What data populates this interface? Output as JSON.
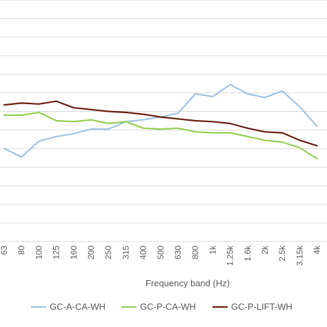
{
  "chart_data": {
    "type": "line",
    "xlabel": "Frequency band (Hz)",
    "ylabel": "",
    "title": "",
    "grid": true,
    "legend_position": "bottom",
    "ylim": [
      0,
      13
    ],
    "categories": [
      "63",
      "80",
      "100",
      "125",
      "160",
      "200",
      "250",
      "315",
      "400",
      "500",
      "630",
      "800",
      "1k",
      "1.25k",
      "1.6k",
      "2k",
      "2.5k",
      "3.15k",
      "4k"
    ],
    "series": [
      {
        "name": "GC-A-CA-WH",
        "color": "#9dc3e6",
        "values": [
          5.0,
          4.55,
          5.4,
          5.65,
          5.8,
          6.05,
          6.05,
          6.45,
          6.55,
          6.7,
          6.9,
          7.95,
          7.8,
          8.45,
          7.95,
          7.75,
          8.1,
          7.25,
          6.2
        ]
      },
      {
        "name": "GC-P-CA-WH",
        "color": "#92d050",
        "values": [
          6.8,
          6.8,
          6.95,
          6.5,
          6.45,
          6.55,
          6.35,
          6.45,
          6.1,
          6.05,
          6.1,
          5.9,
          5.85,
          5.85,
          5.65,
          5.45,
          5.35,
          5.05,
          4.45
        ]
      },
      {
        "name": "GC-P-LIFT-WH",
        "color": "#6b1d0d",
        "values": [
          7.35,
          7.45,
          7.4,
          7.55,
          7.2,
          7.1,
          7.0,
          6.95,
          6.85,
          6.7,
          6.6,
          6.5,
          6.45,
          6.35,
          6.1,
          5.9,
          5.85,
          5.45,
          5.15
        ]
      }
    ]
  }
}
